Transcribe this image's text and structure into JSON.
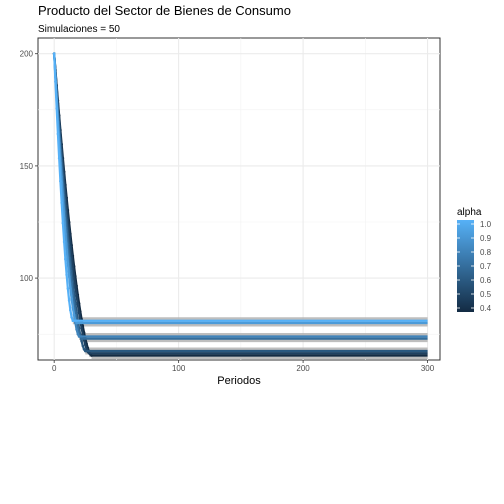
{
  "chart_data": {
    "type": "line",
    "title": "Producto del Sector de Bienes de Consumo",
    "subtitle": "Simulaciones = 50",
    "xlabel": "Periodos",
    "ylabel": "",
    "xlim": [
      -13,
      310
    ],
    "ylim": [
      63.5,
      207
    ],
    "x_ticks": [
      0,
      100,
      200,
      300
    ],
    "y_ticks": [
      100,
      150,
      200
    ],
    "grid": true,
    "legend": {
      "title": "alpha",
      "position": "right",
      "type": "colorbar",
      "range": [
        0.4,
        1.0
      ],
      "labels": [
        "1.0",
        "0.9",
        "0.8",
        "0.7",
        "0.6",
        "0.5",
        "0.4"
      ],
      "color_low": "#132B43",
      "color_high": "#56B1F7"
    },
    "start_value": 200,
    "final_x": 300,
    "series_summary": [
      {
        "alpha": 0.4,
        "settle_period": 30,
        "final_value": 65.5
      },
      {
        "alpha": 0.5,
        "settle_period": 28,
        "final_value": 66.5
      },
      {
        "alpha": 0.6,
        "settle_period": 25,
        "final_value": 67.5
      },
      {
        "alpha": 0.7,
        "settle_period": 22,
        "final_value": 73.0
      },
      {
        "alpha": 0.8,
        "settle_period": 20,
        "final_value": 74.0
      },
      {
        "alpha": 0.9,
        "settle_period": 18,
        "final_value": 80.0
      },
      {
        "alpha": 1.0,
        "settle_period": 15,
        "final_value": 81.0
      }
    ],
    "band_color": "#b3b3b3"
  }
}
